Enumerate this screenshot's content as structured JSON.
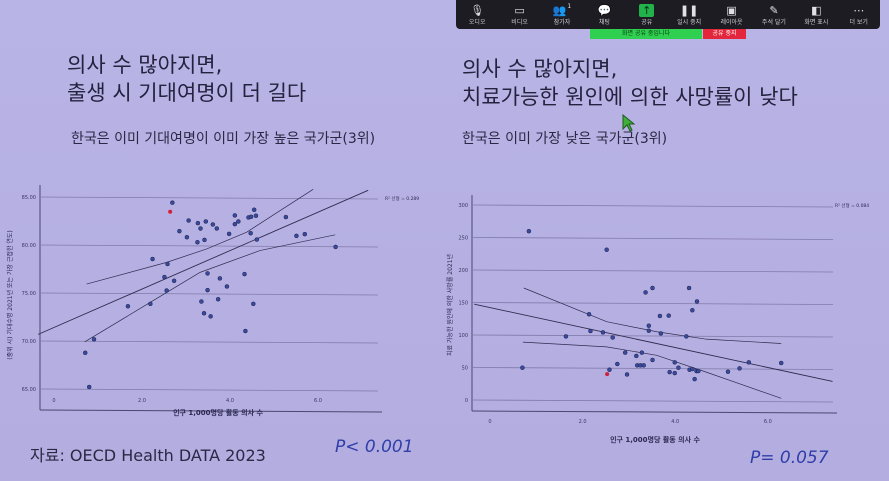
{
  "toolbar": {
    "items": [
      {
        "label": "오디오",
        "icon": "microphone-icon",
        "glyph": "🎙"
      },
      {
        "label": "비디오",
        "icon": "video-camera-icon",
        "glyph": "▭"
      },
      {
        "label": "참가자",
        "icon": "participants-icon",
        "glyph": "👥",
        "badge": "1"
      },
      {
        "label": "채팅",
        "icon": "chat-icon",
        "glyph": "💬"
      },
      {
        "label": "공유",
        "icon": "share-screen-icon",
        "glyph": "↑"
      },
      {
        "label": "일시 중지",
        "icon": "pause-icon",
        "glyph": "❚❚"
      },
      {
        "label": "레이아웃",
        "icon": "layout-icon",
        "glyph": "▣"
      },
      {
        "label": "주석 달기",
        "icon": "annotate-pencil-icon",
        "glyph": "✎"
      },
      {
        "label": "화면 표시",
        "icon": "view-icon",
        "glyph": "◧"
      },
      {
        "label": "더 보기",
        "icon": "more-icon",
        "glyph": "⋯"
      }
    ],
    "share_banner": "화면 공유 중입니다",
    "stop_share": "공유 중지",
    "share_color": "#2fcf4f",
    "stop_color": "#e3263b"
  },
  "left_slide": {
    "title_line1": "의사 수 많아지면,",
    "title_line2": "출생 시 기대여명이 더 길다",
    "subtitle": "한국은 이미 기대여명이 이미 가장 높은 국가군(3위)",
    "source": "자료: OECD Health DATA 2023",
    "p_value": "P< 0.001"
  },
  "right_slide": {
    "title_line1": "의사 수 많아지면,",
    "title_line2": "치료가능한 원인에 의한 사망률이 낮다",
    "subtitle": "한국은 이미 가장 낮은 국가군(3위)",
    "p_value": "P= 0.057"
  },
  "chart_data": [
    {
      "type": "scatter",
      "xlabel": "인구 1,000명당 활동 의사 수",
      "ylabel": "(중위 시) 기대수명 2021년 또는 가장 근접한 연도)",
      "xticks": [
        "0",
        "2.0",
        "4.0",
        "6.0"
      ],
      "xtick_values": [
        0,
        2,
        4,
        6
      ],
      "yticks": [
        "85.00",
        "80.00",
        "75.00",
        "70.00",
        "65.00"
      ],
      "ytick_values": [
        85,
        80,
        75,
        70,
        65
      ],
      "xlim": [
        -0.4,
        7.4
      ],
      "ylim": [
        64,
        86
      ],
      "grid": "horizontal",
      "annotation": "R² 선형 = 0.289",
      "highlight_color": "#d0203a",
      "point_color": "#3a4a9a",
      "points": [
        [
          2.69,
          84.41
        ],
        [
          3.06,
          82.55
        ],
        [
          3.27,
          82.28
        ],
        [
          3.45,
          82.45
        ],
        [
          3.61,
          82.14
        ],
        [
          3.33,
          81.72
        ],
        [
          3.7,
          81.72
        ],
        [
          2.85,
          81.44
        ],
        [
          3.02,
          80.81
        ],
        [
          3.26,
          80.29
        ],
        [
          3.42,
          80.53
        ],
        [
          3.98,
          81.16
        ],
        [
          4.11,
          83.08
        ],
        [
          4.11,
          82.17
        ],
        [
          4.19,
          82.45
        ],
        [
          4.42,
          82.87
        ],
        [
          4.48,
          82.94
        ],
        [
          4.55,
          83.67
        ],
        [
          4.59,
          83.05
        ],
        [
          4.47,
          81.23
        ],
        [
          4.61,
          80.57
        ],
        [
          5.27,
          82.91
        ],
        [
          5.51,
          80.95
        ],
        [
          5.7,
          81.13
        ],
        [
          6.4,
          79.8
        ],
        [
          2.24,
          78.54
        ],
        [
          2.58,
          78.02
        ],
        [
          2.51,
          76.66
        ],
        [
          2.73,
          76.27
        ],
        [
          2.56,
          75.26
        ],
        [
          3.49,
          77.04
        ],
        [
          3.77,
          76.52
        ],
        [
          3.49,
          75.3
        ],
        [
          3.93,
          75.68
        ],
        [
          4.33,
          76.97
        ],
        [
          3.35,
          74.11
        ],
        [
          3.73,
          74.35
        ],
        [
          4.53,
          73.87
        ],
        [
          2.19,
          73.87
        ],
        [
          1.68,
          73.62
        ],
        [
          3.41,
          72.89
        ],
        [
          3.56,
          72.57
        ],
        [
          4.35,
          71.04
        ],
        [
          0.91,
          70.17
        ],
        [
          0.71,
          68.77
        ],
        [
          0.8,
          65.21
        ]
      ],
      "highlight_point": [
        2.64,
        83.46
      ],
      "fit_line": [
        [
          -0.36,
          70.69
        ],
        [
          7.14,
          85.7
        ]
      ],
      "ci_upper": [
        [
          0.74,
          75.93
        ],
        [
          2.56,
          78.19
        ],
        [
          3.47,
          79.59
        ],
        [
          4.38,
          81.34
        ],
        [
          5.89,
          85.8
        ]
      ],
      "ci_lower": [
        [
          0.7,
          69.92
        ],
        [
          2.18,
          74.0
        ],
        [
          3.32,
          77.15
        ],
        [
          4.68,
          79.42
        ],
        [
          6.39,
          81.06
        ]
      ]
    },
    {
      "type": "scatter",
      "xlabel": "인구 1,000명당 활동 의사 수",
      "ylabel": "치료 가능한 원인에 의한 사망률 2021년",
      "xticks": [
        "0",
        "2.0",
        "4.0",
        "6.0"
      ],
      "xtick_values": [
        0,
        2,
        4,
        6
      ],
      "yticks": [
        "300",
        "250",
        "200",
        "150",
        "100",
        "50",
        "0"
      ],
      "ytick_values": [
        300,
        250,
        200,
        150,
        100,
        50,
        0
      ],
      "xlim": [
        -0.4,
        7.5
      ],
      "ylim": [
        -15,
        310
      ],
      "grid": "horizontal",
      "annotation": "R² 선형 = 0.084",
      "highlight_color": "#d0203a",
      "point_color": "#3a4a9a",
      "points": [
        [
          0.84,
          259.7
        ],
        [
          2.52,
          231.2
        ],
        [
          0.7,
          49.7
        ],
        [
          1.64,
          97.8
        ],
        [
          2.14,
          131.9
        ],
        [
          2.17,
          106.1
        ],
        [
          2.44,
          104.0
        ],
        [
          2.65,
          96.2
        ],
        [
          2.58,
          46.6
        ],
        [
          2.75,
          55.4
        ],
        [
          2.92,
          72.9
        ],
        [
          2.96,
          39.3
        ],
        [
          3.16,
          67.8
        ],
        [
          3.28,
          72.9
        ],
        [
          3.18,
          53.3
        ],
        [
          3.25,
          53.3
        ],
        [
          3.32,
          53.3
        ],
        [
          3.36,
          165.5
        ],
        [
          3.51,
          172.3
        ],
        [
          3.43,
          114.3
        ],
        [
          3.43,
          106.6
        ],
        [
          3.51,
          61.6
        ],
        [
          3.67,
          129.3
        ],
        [
          3.69,
          102.4
        ],
        [
          3.86,
          129.8
        ],
        [
          3.88,
          42.9
        ],
        [
          3.99,
          57.9
        ],
        [
          3.99,
          41.4
        ],
        [
          4.07,
          49.7
        ],
        [
          4.24,
          97.8
        ],
        [
          4.3,
          172.3
        ],
        [
          4.37,
          138.1
        ],
        [
          4.47,
          151.6
        ],
        [
          4.31,
          46.6
        ],
        [
          4.37,
          47.6
        ],
        [
          4.42,
          32.1
        ],
        [
          4.46,
          44.5
        ],
        [
          4.5,
          44.5
        ],
        [
          5.14,
          43.5
        ],
        [
          5.39,
          48.6
        ],
        [
          5.59,
          57.9
        ],
        [
          6.29,
          56.9
        ]
      ],
      "highlight_point": [
        2.53,
        39.8
      ],
      "fit_line": [
        [
          -0.34,
          147.4
        ],
        [
          7.4,
          28.5
        ]
      ],
      "ci_upper": [
        [
          0.73,
          172.3
        ],
        [
          2.52,
          120.5
        ],
        [
          3.6,
          105.0
        ],
        [
          4.67,
          93.6
        ],
        [
          6.29,
          86.9
        ]
      ],
      "ci_lower": [
        [
          0.71,
          89.0
        ],
        [
          2.52,
          81.7
        ],
        [
          3.6,
          68.8
        ],
        [
          4.67,
          42.9
        ],
        [
          6.29,
          2.6
        ]
      ]
    }
  ]
}
